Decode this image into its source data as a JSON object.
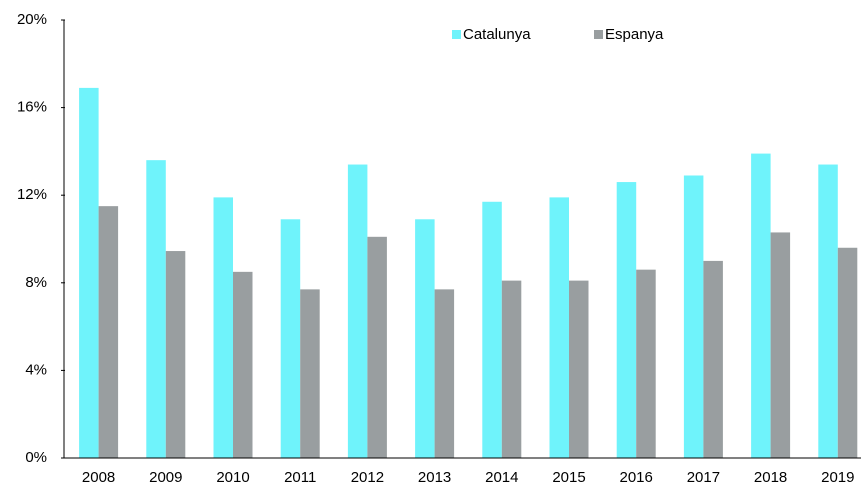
{
  "chart_data": {
    "type": "bar",
    "categories": [
      "2008",
      "2009",
      "2010",
      "2011",
      "2012",
      "2013",
      "2014",
      "2015",
      "2016",
      "2017",
      "2018",
      "2019"
    ],
    "series": [
      {
        "name": "Catalunya",
        "color": "#6ff3fb",
        "values": [
          16.9,
          13.6,
          11.9,
          10.9,
          13.4,
          10.9,
          11.7,
          11.9,
          12.6,
          12.9,
          13.9,
          13.4
        ]
      },
      {
        "name": "Espanya",
        "color": "#999ea0",
        "values": [
          11.5,
          9.45,
          8.5,
          7.7,
          10.1,
          7.7,
          8.1,
          8.1,
          8.6,
          9.0,
          10.3,
          9.6
        ]
      }
    ],
    "ylim": [
      0,
      20
    ],
    "yticks": [
      {
        "value": 0,
        "label": "0%"
      },
      {
        "value": 4,
        "label": "4%"
      },
      {
        "value": 8,
        "label": "8%"
      },
      {
        "value": 12,
        "label": "12%"
      },
      {
        "value": 16,
        "label": "16%"
      },
      {
        "value": 20,
        "label": "20%"
      }
    ],
    "grid": false,
    "legend": "top"
  }
}
